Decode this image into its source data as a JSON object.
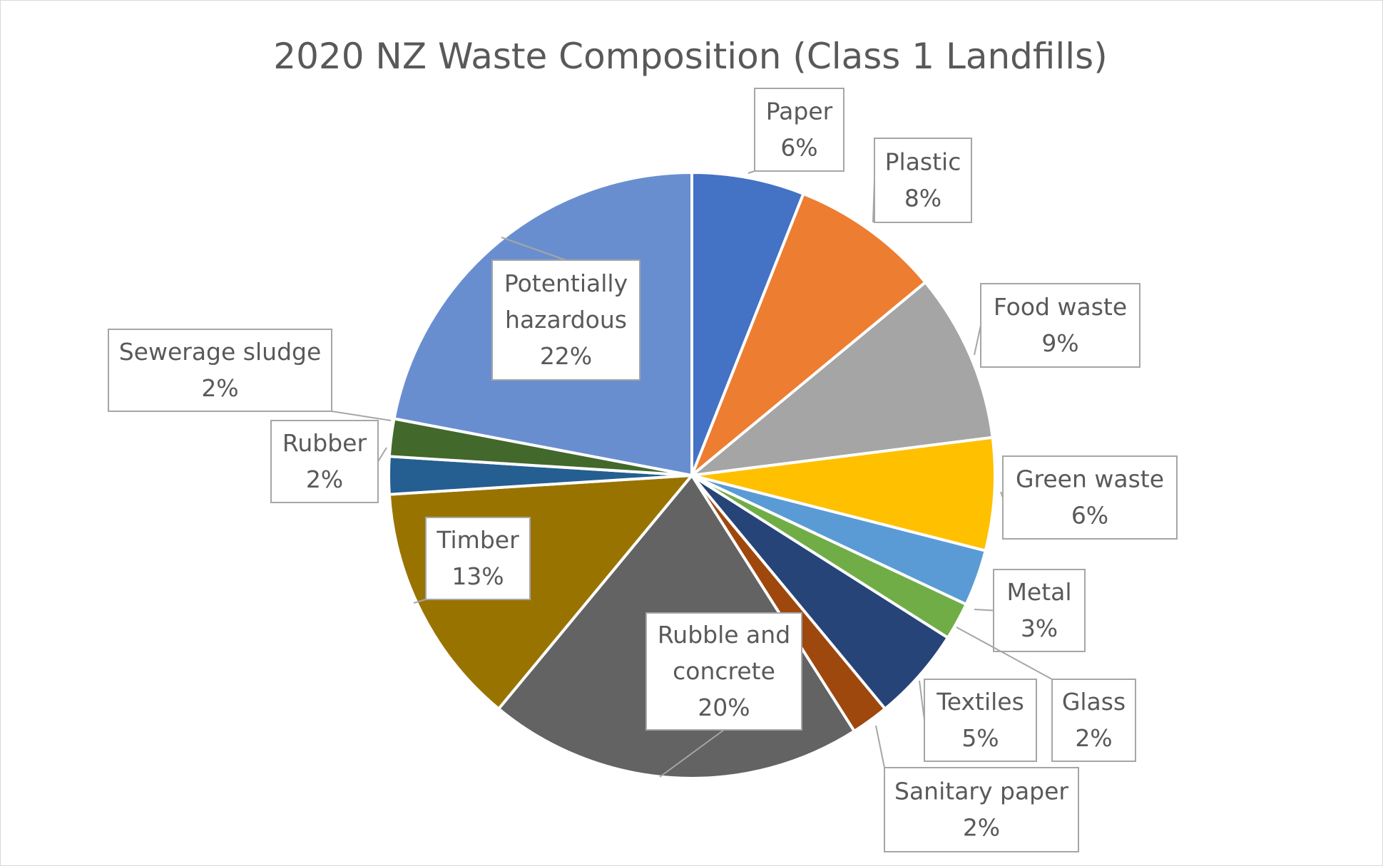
{
  "chart_data": {
    "type": "pie",
    "title": "2020 NZ Waste Composition (Class 1 Landfills)",
    "unit": "%",
    "slices": [
      {
        "label": "Paper",
        "value": 6,
        "display": "6%",
        "color": "#4472C4"
      },
      {
        "label": "Plastic",
        "value": 8,
        "display": "8%",
        "color": "#ED7D31"
      },
      {
        "label": "Food waste",
        "value": 9,
        "display": "9%",
        "color": "#A5A5A5"
      },
      {
        "label": "Green waste",
        "value": 6,
        "display": "6%",
        "color": "#FFC000"
      },
      {
        "label": "Metal",
        "value": 3,
        "display": "3%",
        "color": "#5B9BD5"
      },
      {
        "label": "Glass",
        "value": 2,
        "display": "2%",
        "color": "#70AD47"
      },
      {
        "label": "Textiles",
        "value": 5,
        "display": "5%",
        "color": "#264478"
      },
      {
        "label": "Sanitary paper",
        "value": 2,
        "display": "2%",
        "color": "#9E480E"
      },
      {
        "label": "Rubble and concrete",
        "value": 20,
        "display": "20%",
        "color": "#636363"
      },
      {
        "label": "Timber",
        "value": 13,
        "display": "13%",
        "color": "#997300"
      },
      {
        "label": "Rubber",
        "value": 2,
        "display": "2%",
        "color": "#255E91"
      },
      {
        "label": "Sewerage sludge",
        "value": 2,
        "display": "2%",
        "color": "#43682B"
      },
      {
        "label": "Potentially hazardous",
        "value": 22,
        "display": "22%",
        "color": "#698ED0"
      }
    ],
    "legend": "none",
    "data_labels": "callouts"
  }
}
